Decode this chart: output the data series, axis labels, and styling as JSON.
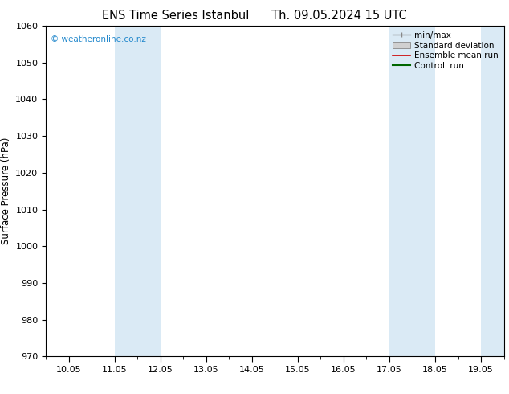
{
  "title": "ENS Time Series Istanbul      Th. 09.05.2024 15 UTC",
  "ylabel": "Surface Pressure (hPa)",
  "ylim": [
    970,
    1060
  ],
  "yticks": [
    970,
    980,
    990,
    1000,
    1010,
    1020,
    1030,
    1040,
    1050,
    1060
  ],
  "xtick_labels": [
    "10.05",
    "11.05",
    "12.05",
    "13.05",
    "14.05",
    "15.05",
    "16.05",
    "17.05",
    "18.05",
    "19.05"
  ],
  "num_days": 10,
  "shaded_bands": [
    {
      "xmin": 1.0,
      "xmax": 1.5,
      "color": "#daeaf5"
    },
    {
      "xmin": 1.5,
      "xmax": 2.0,
      "color": "#daeaf5"
    },
    {
      "xmin": 7.0,
      "xmax": 7.5,
      "color": "#daeaf5"
    },
    {
      "xmin": 7.5,
      "xmax": 8.0,
      "color": "#daeaf5"
    },
    {
      "xmin": 9.0,
      "xmax": 9.5,
      "color": "#daeaf5"
    }
  ],
  "background_color": "#ffffff",
  "plot_bg_color": "#ffffff",
  "watermark": "© weatheronline.co.nz",
  "watermark_color": "#2288cc",
  "legend_fontsize": 7.5,
  "title_fontsize": 10.5,
  "ylabel_fontsize": 8.5,
  "tick_fontsize": 8
}
